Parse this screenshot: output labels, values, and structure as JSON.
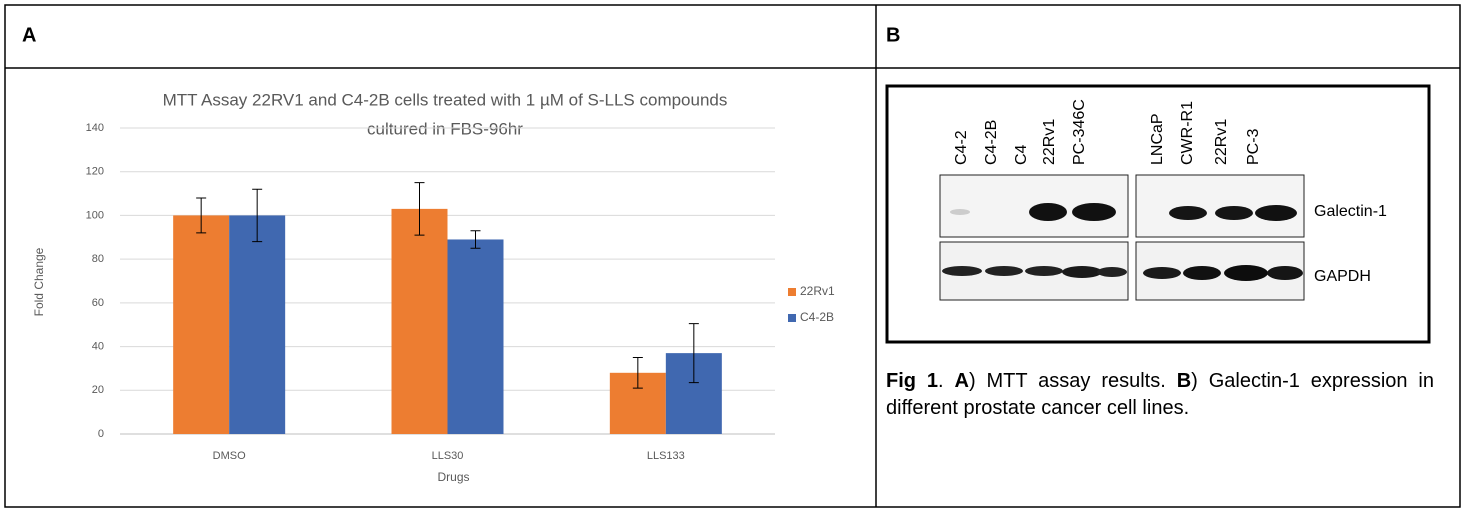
{
  "panels": {
    "a": {
      "label": "A"
    },
    "b": {
      "label": "B"
    }
  },
  "chart_data": {
    "type": "bar",
    "title": [
      "MTT Assay 22RV1 and C4-2B cells treated with 1 µM of S-LLS compounds",
      "cultured in FBS-96hr"
    ],
    "x_label": "Drugs",
    "y_label": "Fold Change",
    "categories": [
      "DMSO",
      "LLS30",
      "LLS133"
    ],
    "series": [
      {
        "name": "22Rv1",
        "color": "#ed7d31",
        "values": [
          100,
          103,
          28
        ],
        "errors": [
          8,
          12,
          7
        ]
      },
      {
        "name": "C4-2B",
        "color": "#4068b0",
        "values": [
          100,
          89,
          37
        ],
        "errors": [
          12,
          4,
          13.5
        ]
      }
    ],
    "ylim": [
      0,
      140
    ],
    "yticks": [
      0,
      20,
      40,
      60,
      80,
      100,
      120,
      140
    ],
    "grid": true,
    "legend": "right"
  },
  "blot": {
    "lanes_left": [
      "C4-2",
      "C4-2B",
      "C4",
      "22Rv1",
      "PC-346C"
    ],
    "lanes_right": [
      "LNCaP",
      "CWR-R1",
      "22Rv1",
      "PC-3"
    ],
    "bands": [
      "Galectin-1",
      "GAPDH"
    ]
  },
  "caption": {
    "parts": [
      "Fig 1",
      ". ",
      "A",
      ") MTT assay results. ",
      "B",
      ") Galectin-1 expression in different prostate cancer cell lines."
    ]
  }
}
